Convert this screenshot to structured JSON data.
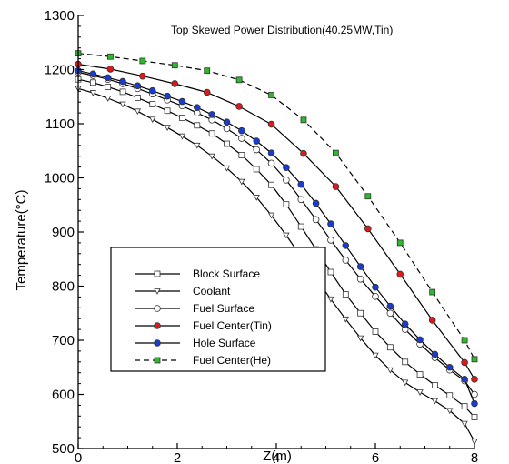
{
  "chart_data": {
    "type": "line",
    "title": "Top Skewed Power Distribution(40.25MW,Tin)",
    "xlabel": "Z(m)",
    "ylabel": "Temperature(°C)",
    "xlim": [
      0,
      8
    ],
    "ylim": [
      500,
      1300
    ],
    "xticks": [
      "0",
      "2",
      "4",
      "6",
      "8"
    ],
    "yticks": [
      "500",
      "600",
      "700",
      "800",
      "900",
      "1000",
      "1100",
      "1200",
      "1300"
    ],
    "xtick_values": [
      0,
      2,
      4,
      6,
      8
    ],
    "ytick_values": [
      500,
      600,
      700,
      800,
      900,
      1000,
      1100,
      1200,
      1300
    ],
    "grid": false,
    "legend_position": "lower-left",
    "series": [
      {
        "name": "Block Surface",
        "color": "#000000",
        "dashed": false,
        "marker": "square",
        "marker_fill": "#ffffff",
        "x": [
          0,
          0.3,
          0.6,
          0.9,
          1.2,
          1.5,
          1.8,
          2.1,
          2.4,
          2.7,
          3.0,
          3.3,
          3.6,
          3.9,
          4.2,
          4.5,
          4.8,
          5.1,
          5.4,
          5.7,
          6.0,
          6.3,
          6.6,
          6.9,
          7.2,
          7.5,
          7.8,
          8.0
        ],
        "y": [
          1182,
          1176,
          1168,
          1159,
          1148,
          1136,
          1124,
          1111,
          1097,
          1082,
          1063,
          1042,
          1016,
          987,
          951,
          910,
          868,
          826,
          785,
          750,
          716,
          687,
          660,
          637,
          617,
          598,
          578,
          558
        ]
      },
      {
        "name": "Coolant",
        "color": "#000000",
        "dashed": false,
        "marker": "triangle-down",
        "marker_fill": "#ffffff",
        "x": [
          0,
          0.3,
          0.6,
          0.9,
          1.2,
          1.5,
          1.8,
          2.1,
          2.4,
          2.7,
          3.0,
          3.3,
          3.6,
          3.9,
          4.2,
          4.5,
          4.8,
          5.1,
          5.4,
          5.7,
          6.0,
          6.3,
          6.6,
          6.9,
          7.2,
          7.5,
          7.8,
          8.0
        ],
        "y": [
          1165,
          1157,
          1147,
          1136,
          1123,
          1108,
          1093,
          1077,
          1060,
          1040,
          1018,
          993,
          964,
          931,
          894,
          854,
          815,
          776,
          739,
          704,
          672,
          645,
          622,
          604,
          588,
          570,
          546,
          513
        ]
      },
      {
        "name": "Fuel Surface",
        "color": "#000000",
        "dashed": false,
        "marker": "circle",
        "marker_fill": "#ffffff",
        "x": [
          0,
          0.3,
          0.6,
          0.9,
          1.2,
          1.5,
          1.8,
          2.1,
          2.4,
          2.7,
          3.0,
          3.3,
          3.6,
          3.9,
          4.2,
          4.5,
          4.8,
          5.1,
          5.4,
          5.7,
          6.0,
          6.3,
          6.6,
          6.9,
          7.2,
          7.5,
          7.8,
          8.0
        ],
        "y": [
          1195,
          1189,
          1182,
          1174,
          1165,
          1155,
          1144,
          1133,
          1120,
          1107,
          1091,
          1073,
          1052,
          1027,
          996,
          960,
          923,
          885,
          848,
          813,
          781,
          750,
          720,
          693,
          668,
          645,
          625,
          600
        ]
      },
      {
        "name": "Fuel Center(Tin)",
        "color": "#000000",
        "dashed": false,
        "marker": "circle",
        "marker_fill": "#dd1a1a",
        "x": [
          0,
          0.65,
          1.3,
          1.95,
          2.6,
          3.25,
          3.9,
          4.55,
          5.2,
          5.85,
          6.5,
          7.15,
          7.8,
          8.0
        ],
        "y": [
          1210,
          1201,
          1188,
          1174,
          1158,
          1132,
          1099,
          1045,
          984,
          906,
          822,
          737,
          659,
          628
        ]
      },
      {
        "name": "Hole Surface",
        "color": "#000000",
        "dashed": false,
        "marker": "circle",
        "marker_fill": "#1a3bd0",
        "x": [
          0,
          0.3,
          0.6,
          0.9,
          1.2,
          1.5,
          1.8,
          2.1,
          2.4,
          2.7,
          3.0,
          3.3,
          3.6,
          3.9,
          4.2,
          4.5,
          4.8,
          5.1,
          5.4,
          5.7,
          6.0,
          6.3,
          6.6,
          6.9,
          7.2,
          7.5,
          7.8,
          8.0
        ],
        "y": [
          1198,
          1192,
          1185,
          1178,
          1170,
          1161,
          1151,
          1141,
          1130,
          1117,
          1103,
          1087,
          1068,
          1046,
          1019,
          988,
          953,
          915,
          875,
          836,
          798,
          763,
          730,
          701,
          674,
          650,
          628,
          583
        ]
      },
      {
        "name": "Fuel Center(He)",
        "color": "#000000",
        "dashed": true,
        "marker": "square",
        "marker_fill": "#2db82d",
        "x": [
          0,
          0.65,
          1.3,
          1.95,
          2.6,
          3.25,
          3.9,
          4.55,
          5.2,
          5.85,
          6.5,
          7.15,
          7.8,
          8.0
        ],
        "y": [
          1230,
          1224,
          1216,
          1208,
          1198,
          1181,
          1153,
          1107,
          1046,
          966,
          880,
          789,
          700,
          665
        ]
      }
    ]
  }
}
